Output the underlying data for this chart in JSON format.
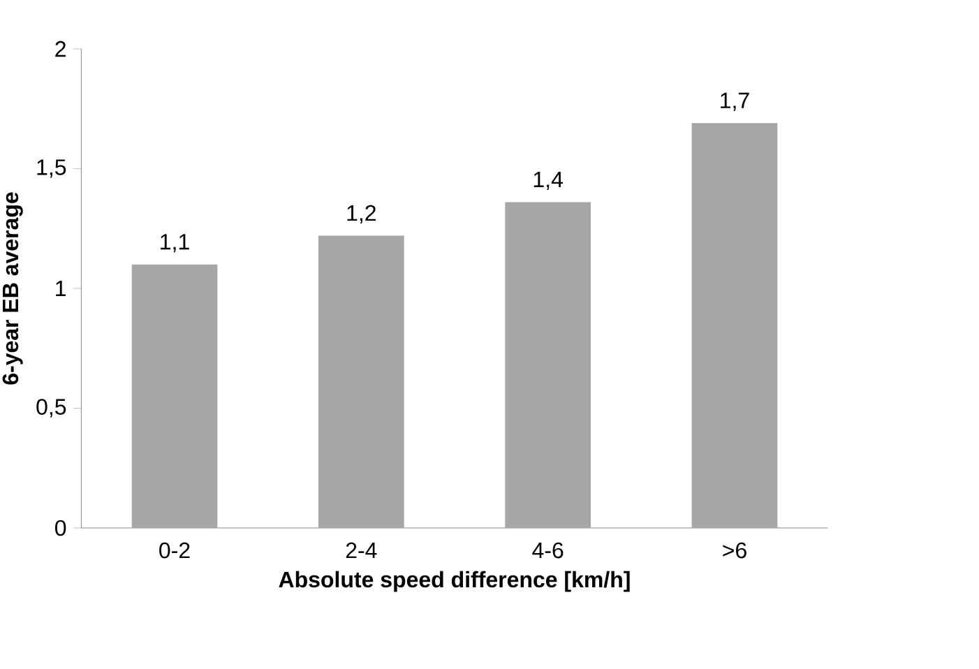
{
  "chart_data": {
    "type": "bar",
    "xlabel": "Absolute speed difference [km/h]",
    "ylabel": "6-year EB average",
    "categories": [
      "0-2",
      "2-4",
      "4-6",
      ">6"
    ],
    "values": [
      1.1,
      1.22,
      1.36,
      1.69
    ],
    "value_labels": [
      "1,1",
      "1,2",
      "1,4",
      "1,7"
    ],
    "color": "#a6a6a6",
    "ylim": [
      0,
      2
    ],
    "yticks": [
      0,
      {
        "value": 0.5,
        "label": "0,5"
      },
      1,
      {
        "value": 1.5,
        "label": "1,5"
      },
      2
    ]
  }
}
